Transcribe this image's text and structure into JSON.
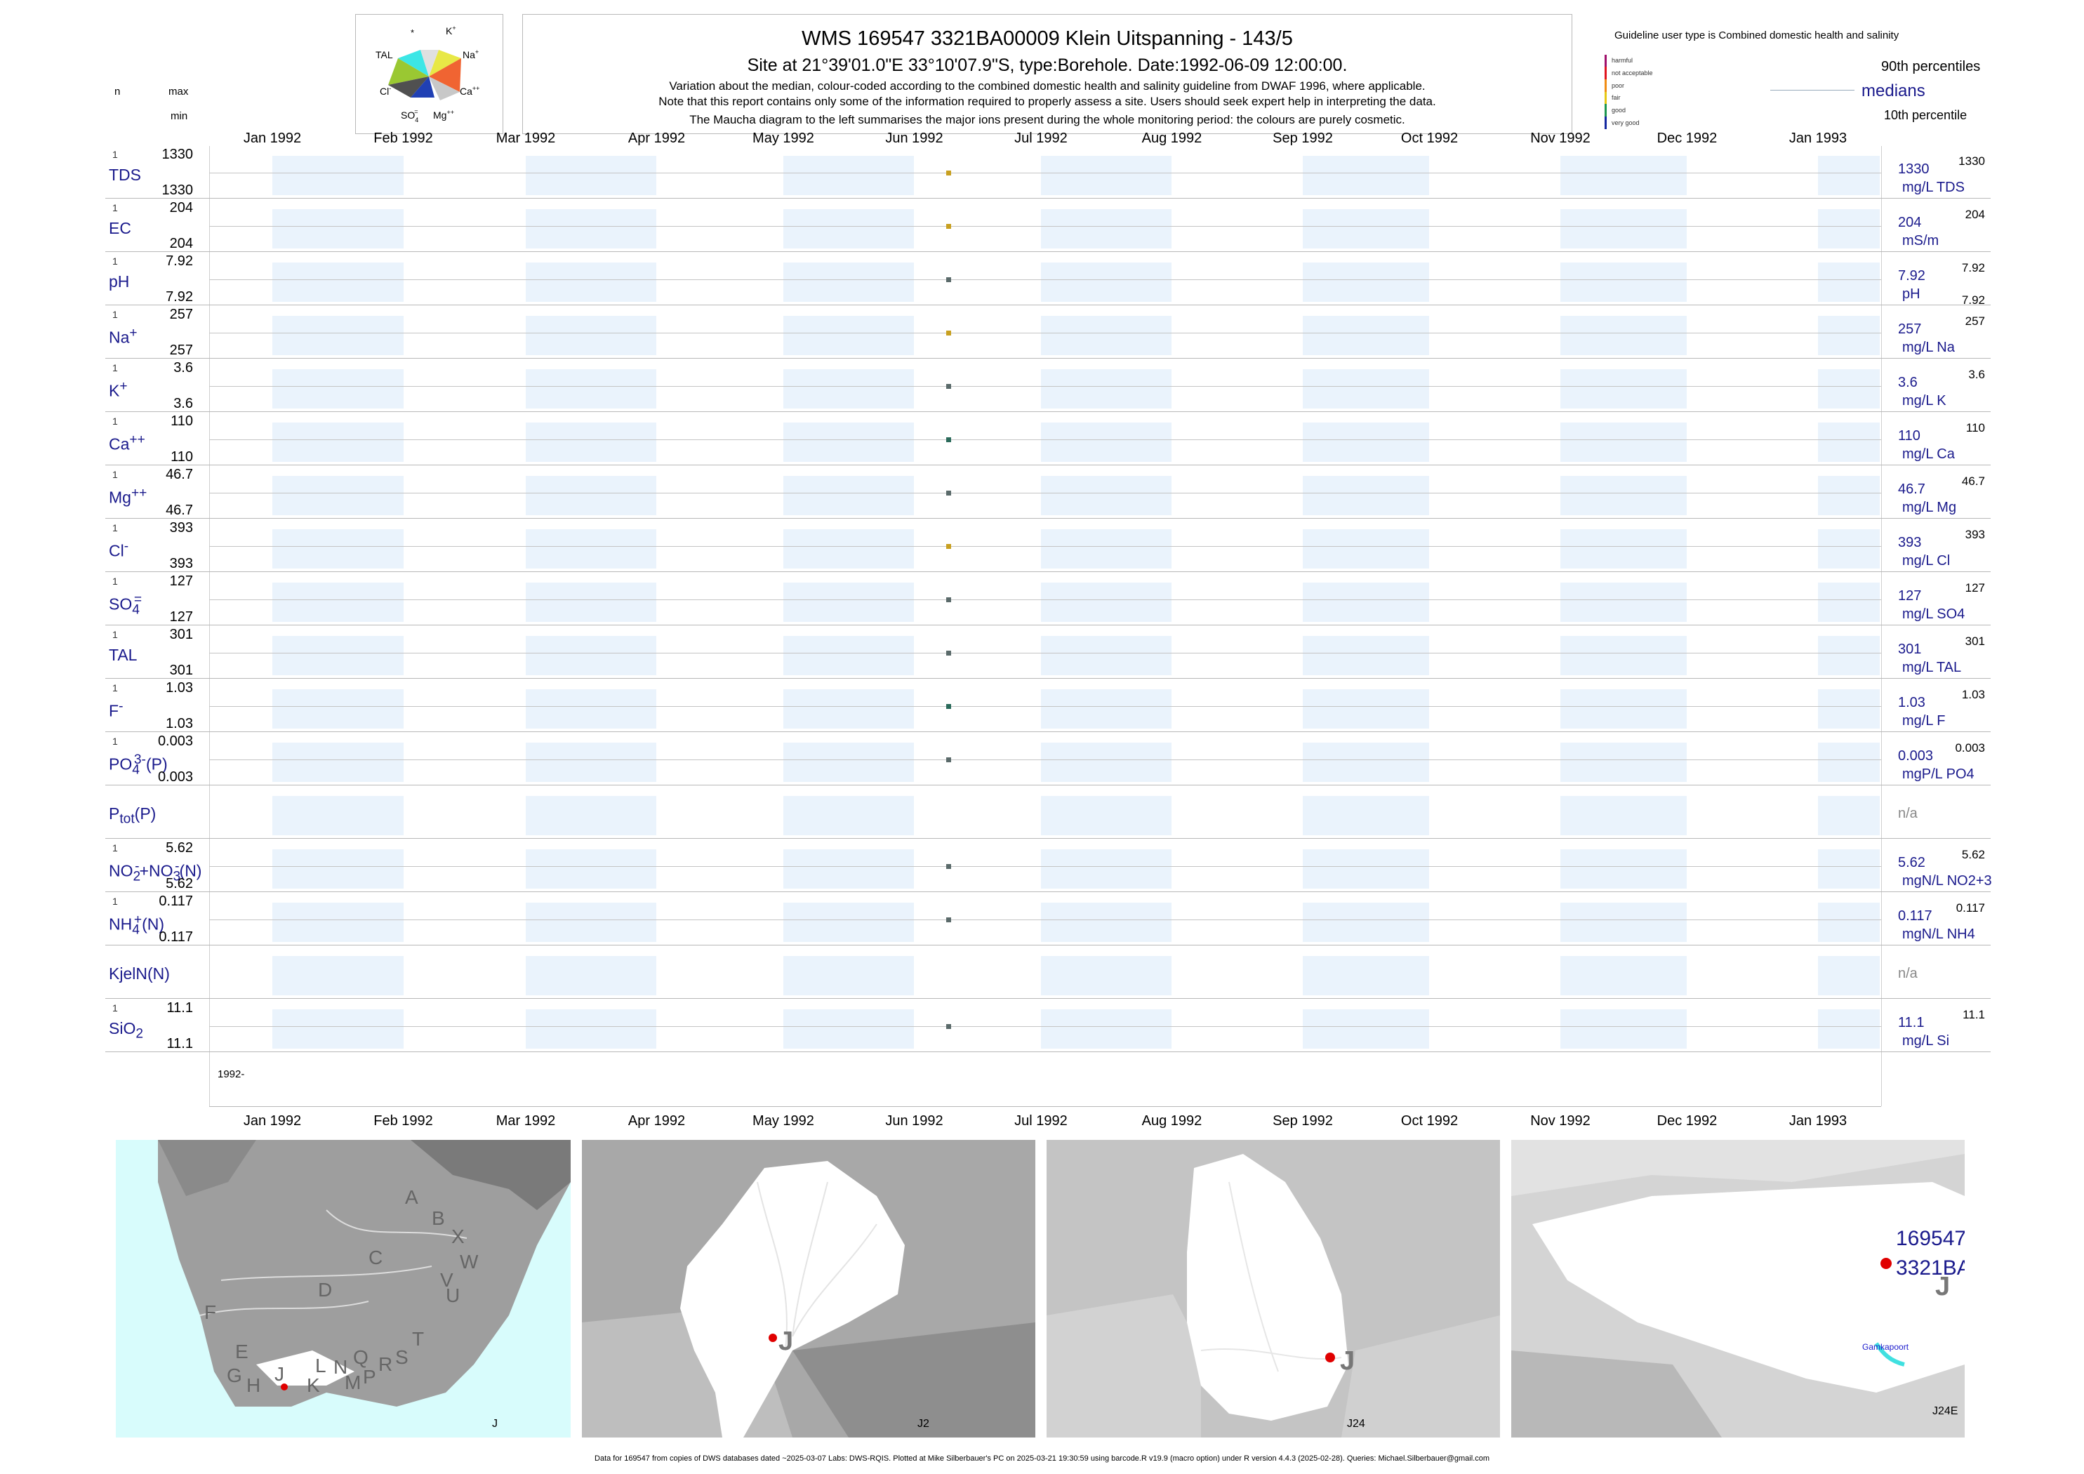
{
  "header": {
    "title": "WMS 169547 3321BA00009 Klein Uitspanning - 143/5",
    "subtitle": "Site at 21°39'01.0\"E 33°10'07.9\"S, type:Borehole. Date:1992-06-09 12:00:00.",
    "line1": "Variation about the median,  colour-coded according to the combined domestic health and salinity guideline from DWAF 1996, where applicable.",
    "line2": "Note that this report contains only some of the information required to properly assess a site. Users should seek expert help in interpreting the data.",
    "line3": "The Maucha diagram to the left summarises the major ions present during the whole monitoring period: the colours are purely cosmetic.",
    "n_label": "n",
    "max_label": "max",
    "min_label": "min"
  },
  "maucha": {
    "labels": [
      "*",
      "K+",
      "TAL",
      "Na+",
      "Cl-",
      "Ca++",
      "SO4=",
      "Mg++"
    ]
  },
  "guideline": {
    "title": "Guideline user type is Combined domestic health and salinity",
    "levels": [
      {
        "label": "harmful",
        "color": "#a0106c"
      },
      {
        "label": "not acceptable",
        "color": "#e0141e"
      },
      {
        "label": "poor",
        "color": "#f08c14"
      },
      {
        "label": "fair",
        "color": "#e6c814"
      },
      {
        "label": "good",
        "color": "#1e9650"
      },
      {
        "label": "very good",
        "color": "#1428a0"
      }
    ],
    "p90": "90th percentiles",
    "medians": "medians",
    "p10": "10th percentile"
  },
  "months": [
    "Jan 1992",
    "Feb 1992",
    "Mar 1992",
    "Apr 1992",
    "May 1992",
    "Jun 1992",
    "Jul 1992",
    "Aug 1992",
    "Sep 1992",
    "Oct 1992",
    "Nov 1992",
    "Dec 1992",
    "Jan 1993"
  ],
  "year_label": "1992-",
  "chart_data": {
    "type": "scatter",
    "x_date": "1992-06-09",
    "x_range": [
      "1992-01-01",
      "1993-01-01"
    ],
    "params": [
      {
        "label": "TDS",
        "n": "1",
        "max": "1330",
        "min": "1330",
        "value": "1330",
        "top": "1330",
        "unit": "mg/L TDS",
        "color": "#c8a020"
      },
      {
        "label": "EC",
        "n": "1",
        "max": "204",
        "min": "204",
        "value": "204",
        "top": "204",
        "unit": "mS/m",
        "color": "#c8a020"
      },
      {
        "label": "pH",
        "n": "1",
        "max": "7.92",
        "min": "7.92",
        "value": "7.92",
        "top": "7.92",
        "unit": "pH",
        "bottom": "7.92",
        "color": "#5a6a6a"
      },
      {
        "label": "Na+",
        "n": "1",
        "max": "257",
        "min": "257",
        "value": "257",
        "top": "257",
        "unit": "mg/L Na",
        "color": "#c8a020"
      },
      {
        "label": "K+",
        "n": "1",
        "max": "3.6",
        "min": "3.6",
        "value": "3.6",
        "top": "3.6",
        "unit": "mg/L K",
        "color": "#5a6a6a"
      },
      {
        "label": "Ca++",
        "n": "1",
        "max": "110",
        "min": "110",
        "value": "110",
        "top": "110",
        "unit": "mg/L Ca",
        "color": "#2a6a5a"
      },
      {
        "label": "Mg++",
        "n": "1",
        "max": "46.7",
        "min": "46.7",
        "value": "46.7",
        "top": "46.7",
        "unit": "mg/L Mg",
        "color": "#5a6a6a"
      },
      {
        "label": "Cl-",
        "n": "1",
        "max": "393",
        "min": "393",
        "value": "393",
        "top": "393",
        "unit": "mg/L Cl",
        "color": "#c8a020"
      },
      {
        "label": "SO4=",
        "n": "1",
        "max": "127",
        "min": "127",
        "value": "127",
        "top": "127",
        "unit": "mg/L SO4",
        "color": "#5a6a6a"
      },
      {
        "label": "TAL",
        "n": "1",
        "max": "301",
        "min": "301",
        "value": "301",
        "top": "301",
        "unit": "mg/L TAL",
        "color": "#5a6a6a"
      },
      {
        "label": "F-",
        "n": "1",
        "max": "1.03",
        "min": "1.03",
        "value": "1.03",
        "top": "1.03",
        "unit": "mg/L F",
        "color": "#2a6a5a"
      },
      {
        "label": "PO4(3-)(P)",
        "n": "1",
        "max": "0.003",
        "min": "0.003",
        "value": "0.003",
        "top": "0.003",
        "unit": "mgP/L PO4",
        "color": "#5a6a6a"
      },
      {
        "label": "Ptot(P)",
        "n": "",
        "max": "",
        "min": "",
        "value": "n/a",
        "top": "",
        "unit": "",
        "color": ""
      },
      {
        "label": "NO2-+NO3-(N)",
        "n": "1",
        "max": "5.62",
        "min": "5.62",
        "value": "5.62",
        "top": "5.62",
        "unit": "mgN/L NO2+3",
        "color": "#5a6a6a"
      },
      {
        "label": "NH4+(N)",
        "n": "1",
        "max": "0.117",
        "min": "0.117",
        "value": "0.117",
        "top": "0.117",
        "unit": "mgN/L NH4",
        "color": "#5a6a6a"
      },
      {
        "label": "KjelN(N)",
        "n": "",
        "max": "",
        "min": "",
        "value": "n/a",
        "top": "",
        "unit": "",
        "color": ""
      },
      {
        "label": "SiO2",
        "n": "1",
        "max": "11.1",
        "min": "11.1",
        "value": "11.1",
        "top": "11.1",
        "unit": "mg/L Si",
        "color": "#5a6a6a"
      }
    ]
  },
  "maps": {
    "m1_label": "J",
    "m1_letters": [
      "A",
      "B",
      "X",
      "C",
      "W",
      "V",
      "D",
      "U",
      "F",
      "T",
      "E",
      "S",
      "R",
      "Q",
      "L",
      "N",
      "P",
      "M",
      "K",
      "G",
      "H",
      "J"
    ],
    "m2_label": "J2",
    "m2_letter": "J",
    "m3_label": "J24",
    "m3_letter": "J",
    "m4_label": "J24E",
    "m4_letter": "J",
    "m4_site1": "169547",
    "m4_site2": "3321BA",
    "m4_place": "Gamkapoort"
  },
  "footer": "Data for 169547 from copies of DWS databases dated ~2025-03-07 Labs: DWS-RQIS. Plotted at Mike Silberbauer's PC on 2025-03-21 19:30:59 using barcode.R v19.9 (macro option) under R version 4.4.3 (2025-02-28). Queries: Michael.Silberbauer@gmail.com"
}
